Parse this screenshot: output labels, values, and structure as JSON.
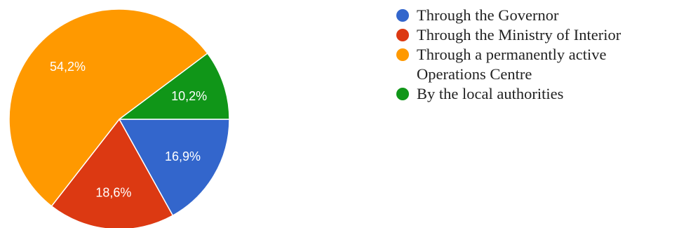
{
  "chart_data": {
    "type": "pie",
    "categories": [
      "Through the Governor",
      "Through the Ministry of Interior",
      "Through a permanently active Operations Centre",
      "By the local authorities"
    ],
    "values": [
      16.9,
      18.6,
      54.2,
      10.2
    ],
    "value_labels": [
      "16,9%",
      "18,6%",
      "54,2%",
      "10,2%"
    ],
    "colors": [
      "#3366cc",
      "#dc3912",
      "#ff9900",
      "#109618"
    ],
    "start_angle_deg": 0,
    "direction": "clockwise",
    "legend_position": "right"
  }
}
